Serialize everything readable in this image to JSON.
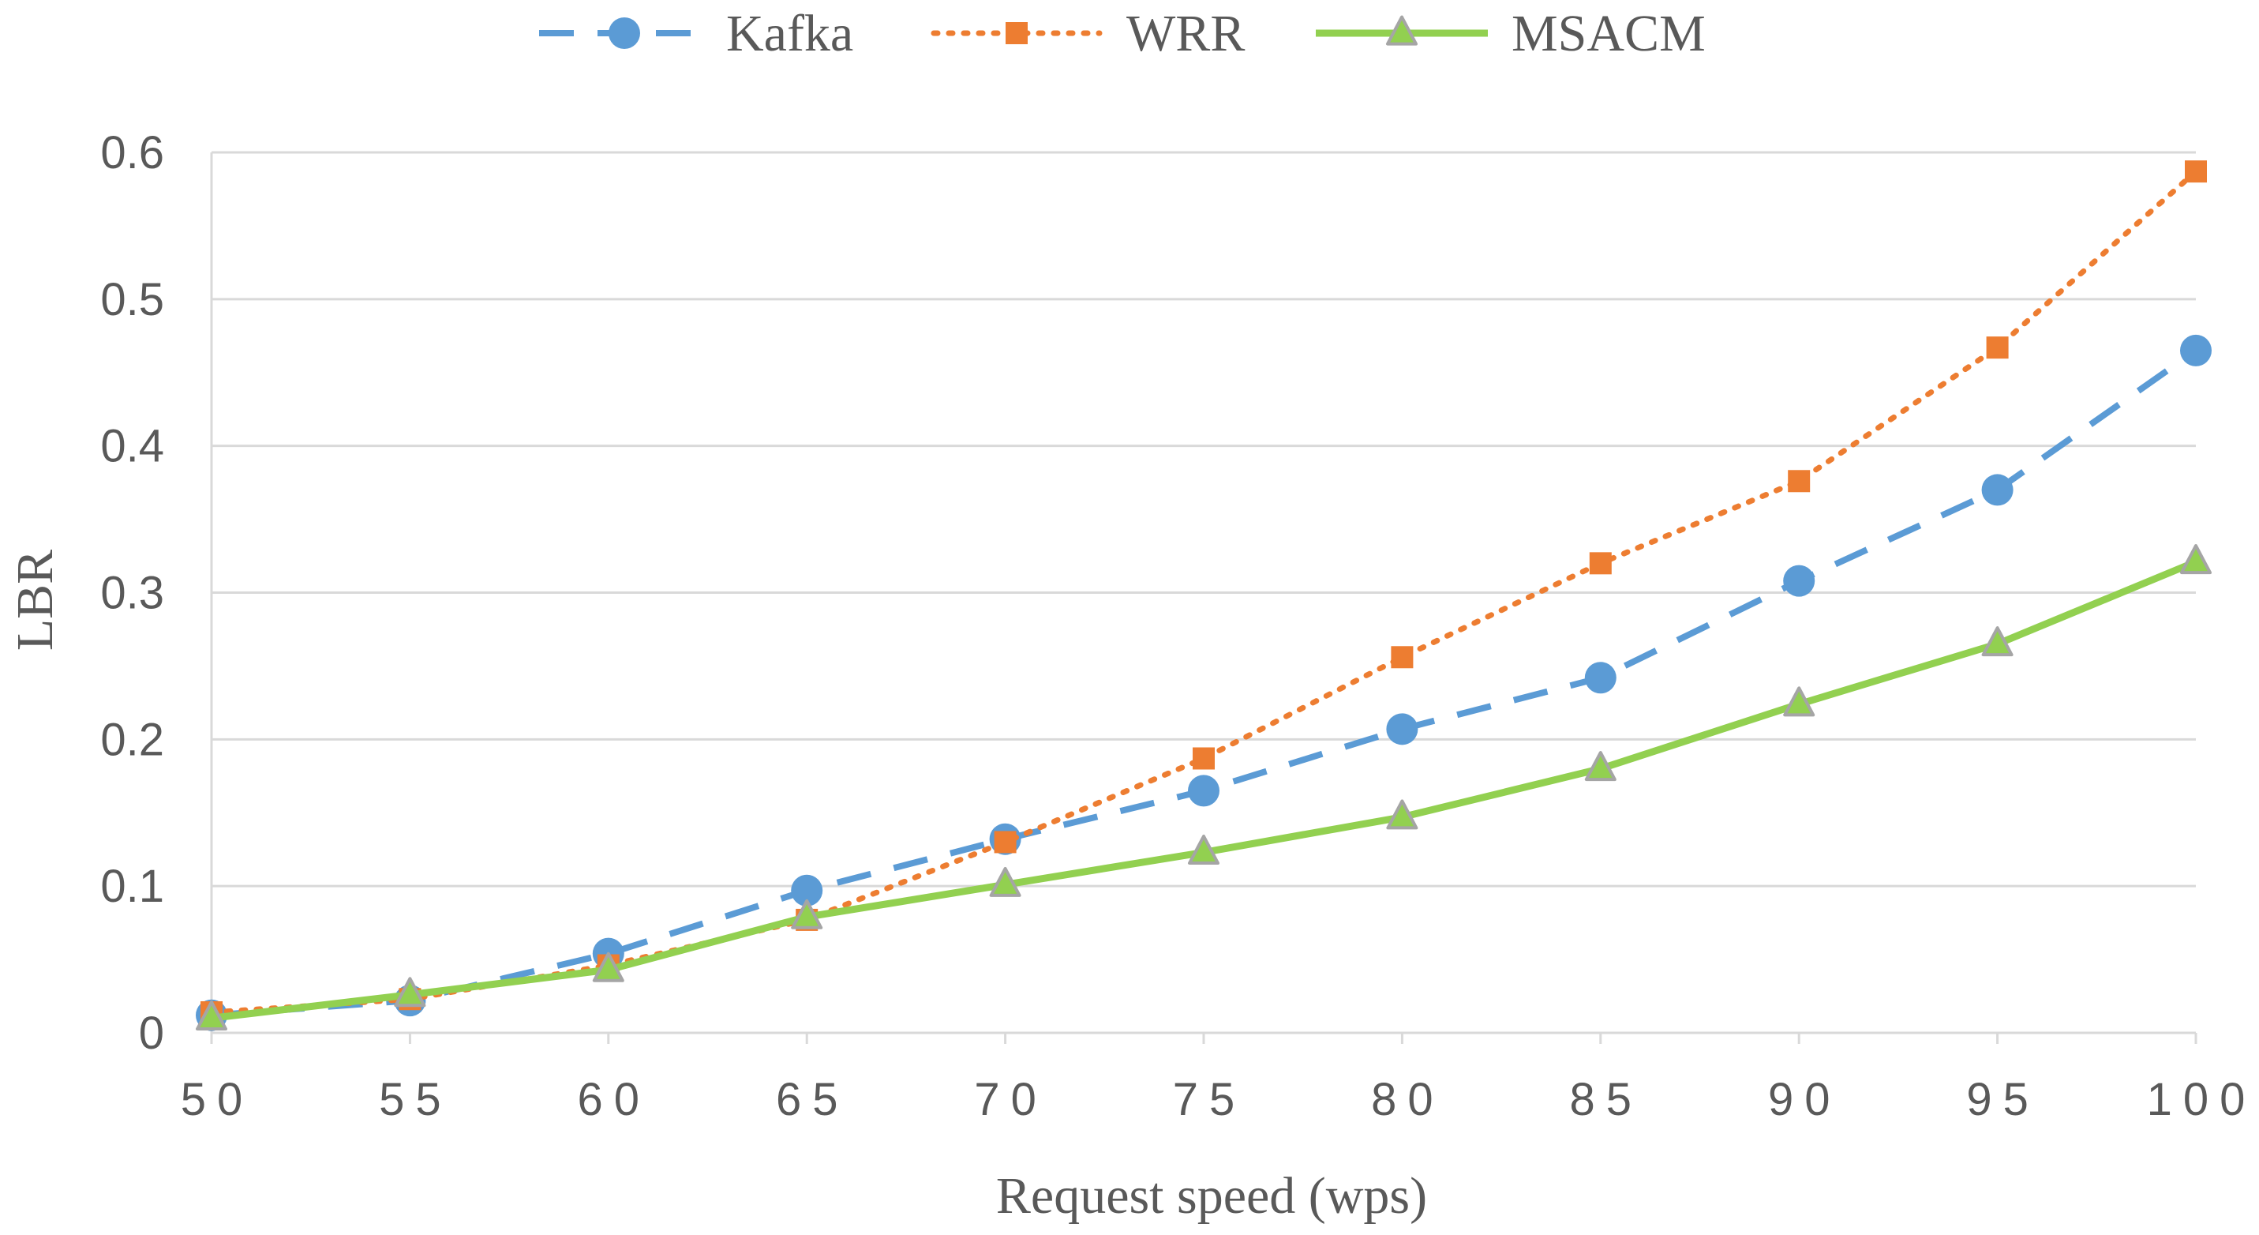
{
  "chart_data": {
    "type": "line",
    "title": "",
    "xlabel": "Request speed (wps)",
    "ylabel": "LBR",
    "x": [
      50,
      55,
      60,
      65,
      70,
      75,
      80,
      85,
      90,
      95,
      100
    ],
    "x_tick_labels": [
      "50",
      "55",
      "60",
      "65",
      "70",
      "75",
      "80",
      "85",
      "90",
      "95",
      "100"
    ],
    "ylim": [
      0,
      0.6
    ],
    "y_ticks": [
      0,
      0.1,
      0.2,
      0.3,
      0.4,
      0.5,
      0.6
    ],
    "y_tick_labels": [
      "0",
      "0.1",
      "0.2",
      "0.3",
      "0.4",
      "0.5",
      "0.6"
    ],
    "grid": "horizontal",
    "legend_position": "top-center",
    "series": [
      {
        "name": "Kafka",
        "color": "#5B9BD5",
        "line_style": "dashed",
        "marker": "circle",
        "values": [
          0.012,
          0.022,
          0.054,
          0.097,
          0.132,
          0.165,
          0.207,
          0.242,
          0.308,
          0.37,
          0.465
        ]
      },
      {
        "name": "WRR",
        "color": "#ED7D31",
        "line_style": "dotted",
        "marker": "square",
        "values": [
          0.014,
          0.023,
          0.046,
          0.077,
          0.13,
          0.187,
          0.256,
          0.32,
          0.376,
          0.467,
          0.587
        ]
      },
      {
        "name": "MSACM",
        "color": "#92D050",
        "line_style": "solid",
        "marker": "triangle",
        "marker_color": "#A5A5A5",
        "values": [
          0.01,
          0.026,
          0.043,
          0.079,
          0.101,
          0.123,
          0.147,
          0.18,
          0.224,
          0.265,
          0.321
        ]
      }
    ]
  },
  "colors": {
    "grid": "#D9D9D9",
    "axis": "#D9D9D9",
    "text": "#595959"
  }
}
